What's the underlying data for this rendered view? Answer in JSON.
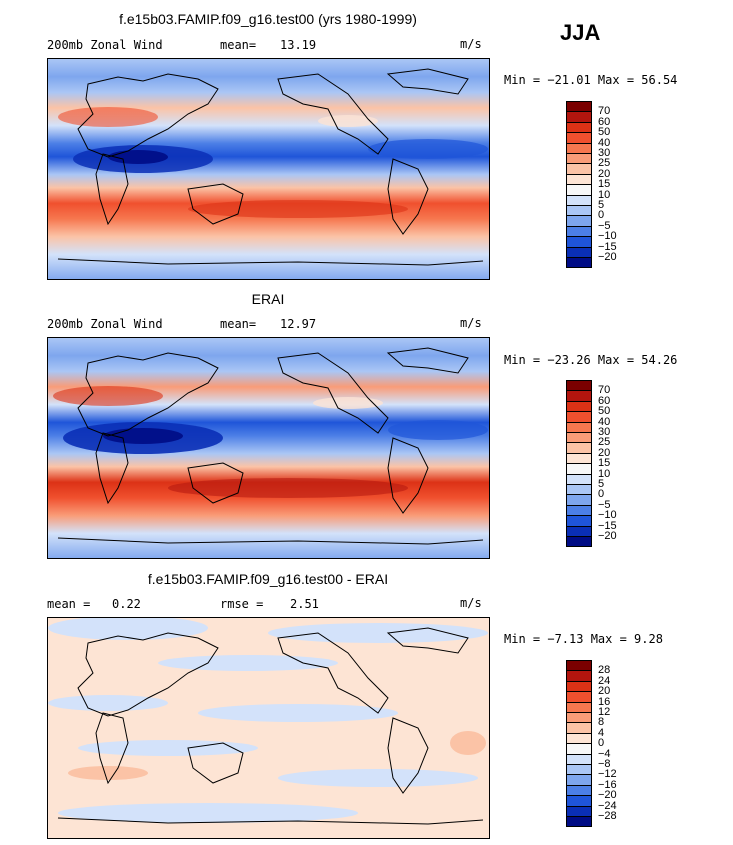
{
  "season": "JJA",
  "panels": [
    {
      "title": "f.e15b03.FAMIP.f09_g16.test00 (yrs 1980-1999)",
      "left_label": "200mb Zonal Wind",
      "stat1_label": "mean=",
      "stat1_value": "13.19",
      "stat2_label": "",
      "stat2_value": "",
      "units": "m/s",
      "minmax": "Min = −21.01 Max =   56.54",
      "levels": [
        "70",
        "60",
        "50",
        "40",
        "30",
        "25",
        "20",
        "15",
        "10",
        "5",
        "0",
        "−5",
        "−10",
        "−15",
        "−20"
      ],
      "colors": [
        "#7a0000",
        "#b2150e",
        "#dc3216",
        "#f0502e",
        "#f6774f",
        "#f99c78",
        "#fbc3a6",
        "#fde4d4",
        "#f7f7f7",
        "#d3e2fa",
        "#aac6f5",
        "#7ea6ee",
        "#4c7fe6",
        "#1f55d9",
        "#0a2fb6",
        "#000c85"
      ]
    },
    {
      "title": "ERAI",
      "left_label": "200mb Zonal Wind",
      "stat1_label": "mean=",
      "stat1_value": "12.97",
      "stat2_label": "",
      "stat2_value": "",
      "units": "m/s",
      "minmax": "Min = −23.26 Max =   54.26",
      "levels": [
        "70",
        "60",
        "50",
        "40",
        "30",
        "25",
        "20",
        "15",
        "10",
        "5",
        "0",
        "−5",
        "−10",
        "−15",
        "−20"
      ],
      "colors": [
        "#7a0000",
        "#b2150e",
        "#dc3216",
        "#f0502e",
        "#f6774f",
        "#f99c78",
        "#fbc3a6",
        "#fde4d4",
        "#f7f7f7",
        "#d3e2fa",
        "#aac6f5",
        "#7ea6ee",
        "#4c7fe6",
        "#1f55d9",
        "#0a2fb6",
        "#000c85"
      ]
    },
    {
      "title": "f.e15b03.FAMIP.f09_g16.test00 - ERAI",
      "left_label": "",
      "stat1_label": "mean =",
      "stat1_value": "0.22",
      "stat2_label": "rmse =",
      "stat2_value": "2.51",
      "units": "m/s",
      "minmax": "Min =   −7.13 Max =     9.28",
      "levels": [
        "28",
        "24",
        "20",
        "16",
        "12",
        "8",
        "4",
        "0",
        "−4",
        "−8",
        "−12",
        "−16",
        "−20",
        "−24",
        "−28"
      ],
      "colors": [
        "#7a0000",
        "#b2150e",
        "#dc3216",
        "#f0502e",
        "#f6774f",
        "#f99c78",
        "#fbc3a6",
        "#fde4d4",
        "#f7f7f7",
        "#d3e2fa",
        "#aac6f5",
        "#7ea6ee",
        "#4c7fe6",
        "#1f55d9",
        "#0a2fb6",
        "#000c85"
      ]
    }
  ]
}
